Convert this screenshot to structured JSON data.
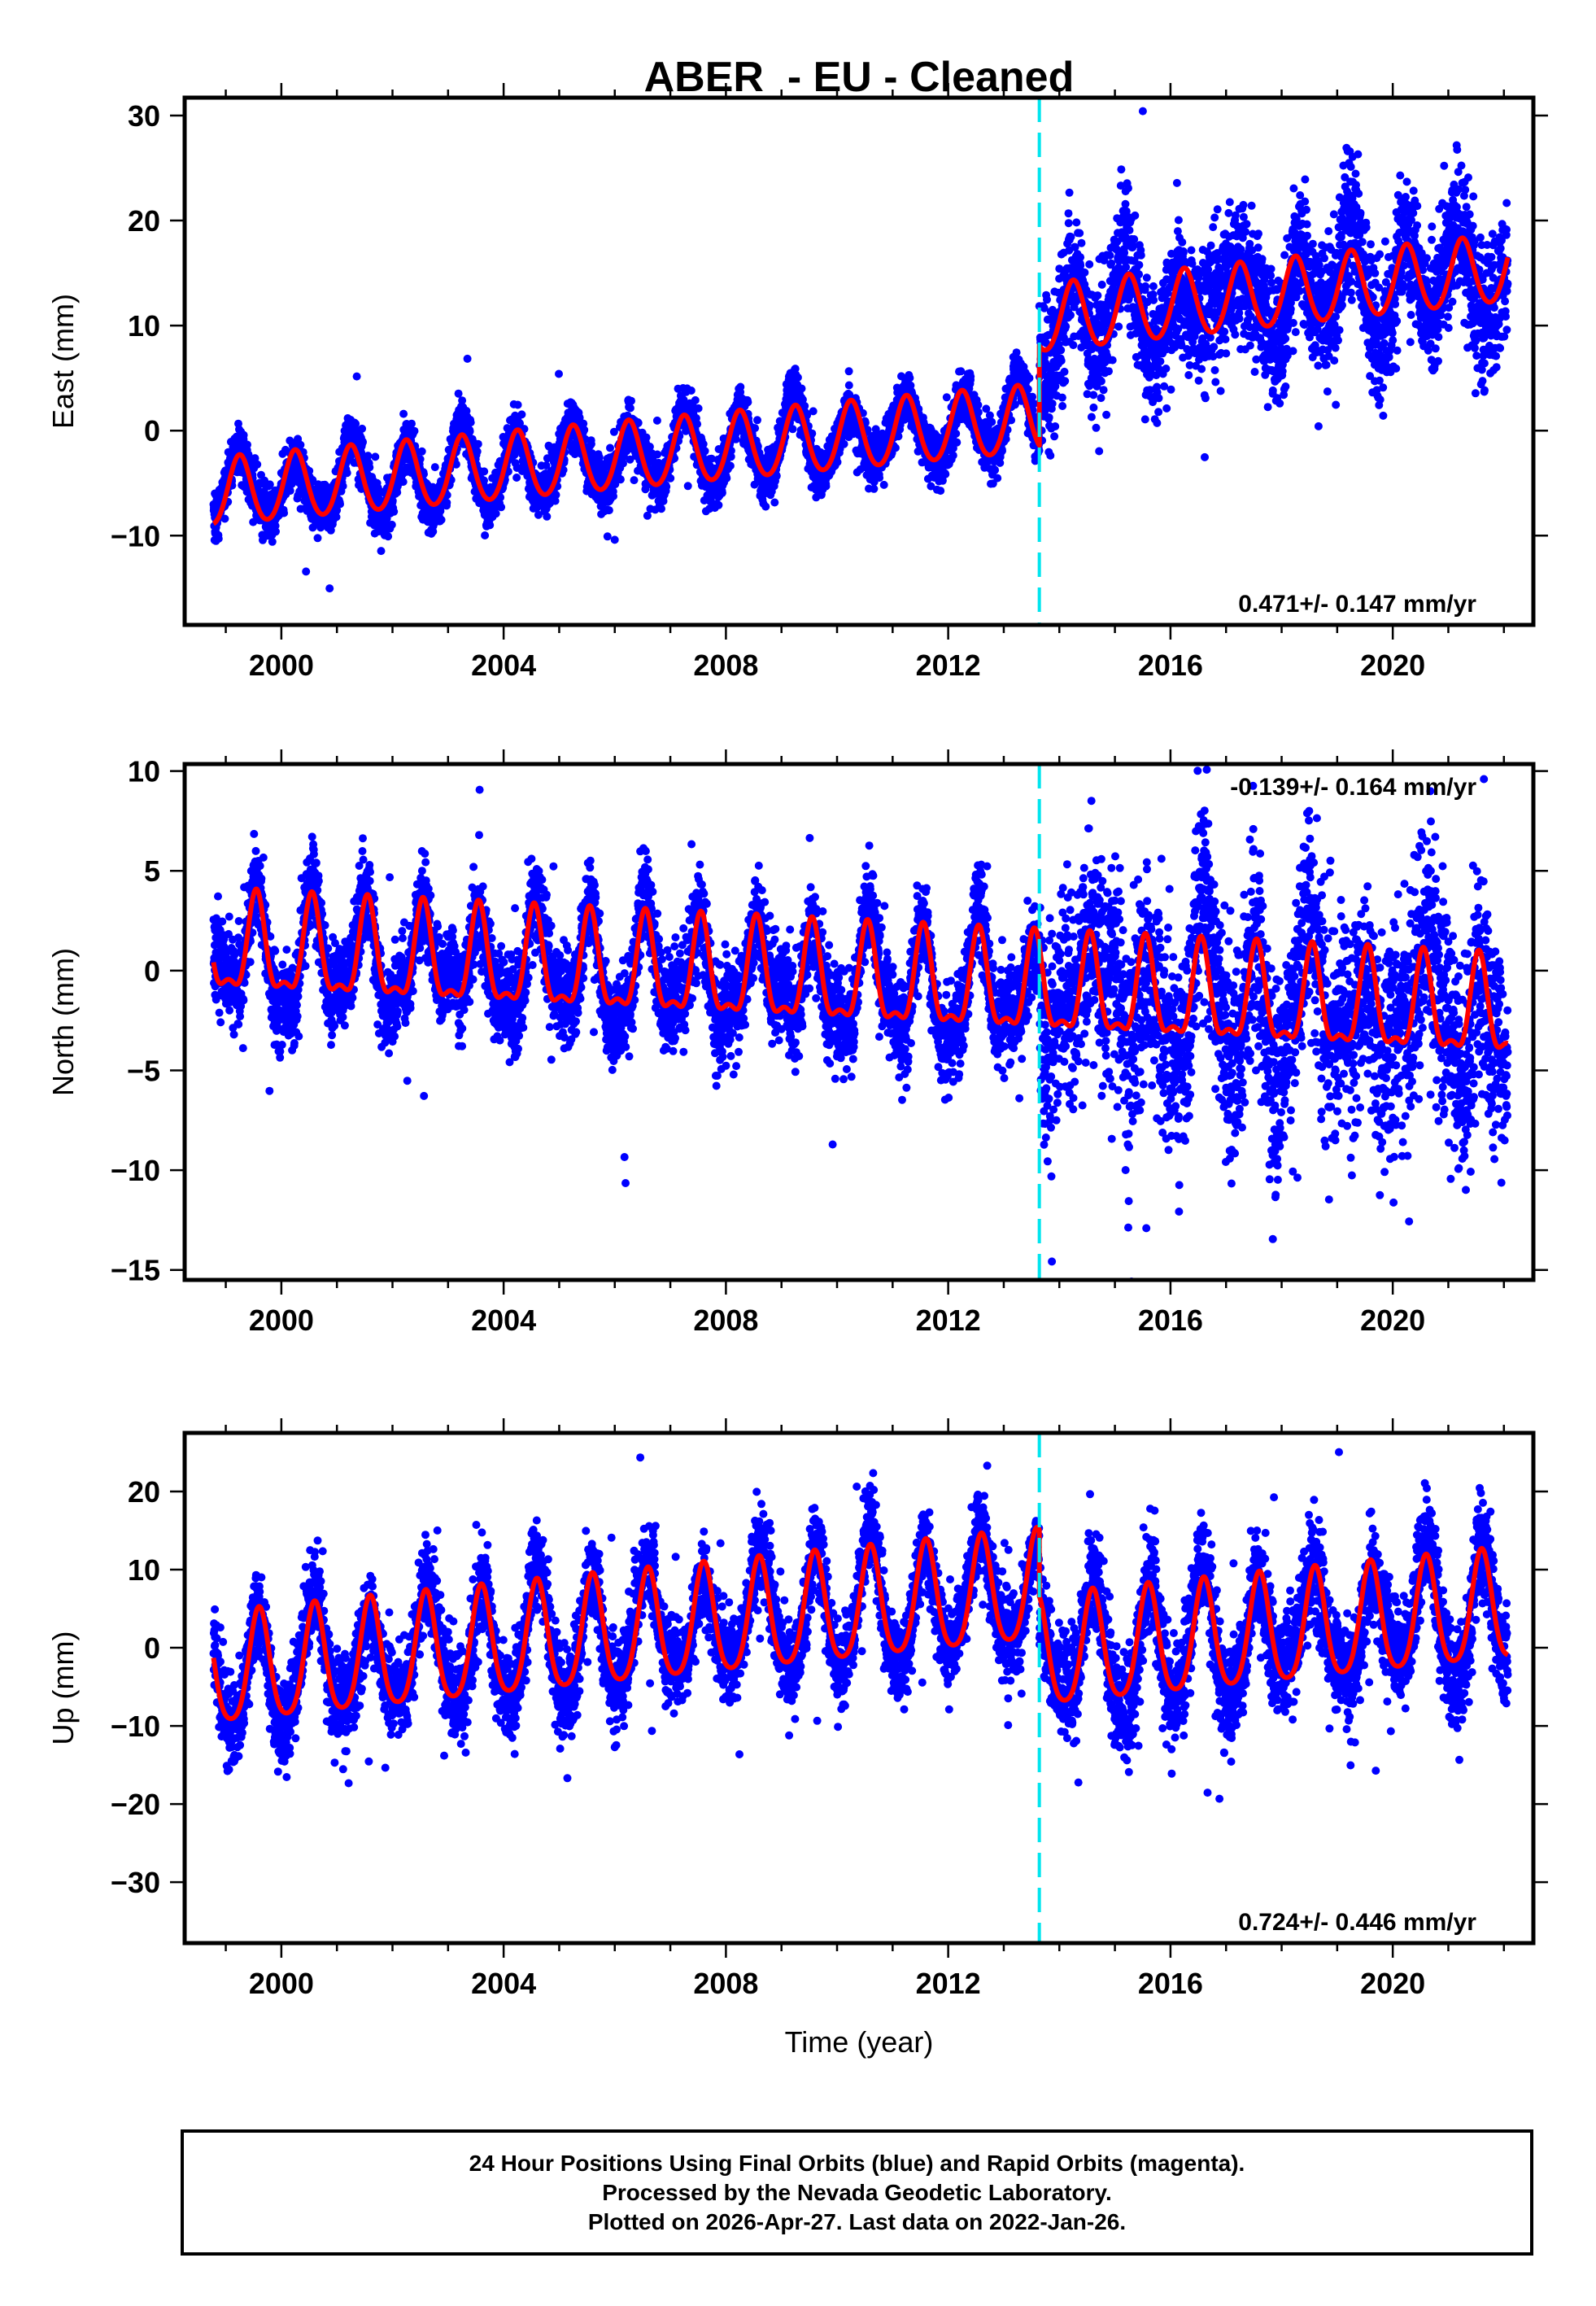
{
  "chart_data": [
    {
      "type": "scatter",
      "panel": "east",
      "title": "ABER  - EU - Cleaned",
      "ylabel": "East (mm)",
      "xlabel": "",
      "xlim": [
        1998.26,
        2022.53
      ],
      "ylim": [
        -18.5,
        31.7
      ],
      "yticks": [
        -10,
        0,
        10,
        20,
        30
      ],
      "ytick_labels": [
        "−10",
        "0",
        "10",
        "20",
        "30"
      ],
      "xticks_major": [
        2000,
        2004,
        2008,
        2012,
        2016,
        2020
      ],
      "xtick_labels": [
        "2000",
        "2004",
        "2008",
        "2012",
        "2016",
        "2020"
      ],
      "xticks_minor_step": 1,
      "rate_label": "0.471+/- 0.147 mm/yr",
      "rate_position": "bottom-right",
      "break_epoch": 2013.64,
      "data_range": [
        1998.78,
        2022.07
      ],
      "model": {
        "t0": 1998.78,
        "intercept": -6.0,
        "rate": 0.471,
        "annual_amp": 3.2,
        "annual_phase_peak": 0.25,
        "semiannual_amp": 0.3,
        "offset_at_break": 9.5,
        "post_break_extra_rate": 0.1,
        "model_end": 2022.07
      },
      "scatter": {
        "noise_pre": 1.6,
        "noise_post": 4.2,
        "outlier_rate": 0.01,
        "points_per_year": 330,
        "seed": 11
      },
      "series": [
        {
          "name": "Final Orbits",
          "color": "#0000ff",
          "kind": "points"
        },
        {
          "name": "Model fit",
          "color": "#ff0000",
          "kind": "line"
        },
        {
          "name": "Equipment change",
          "color": "#00e5ee",
          "kind": "dashed-vline"
        }
      ]
    },
    {
      "type": "scatter",
      "panel": "north",
      "ylabel": "North (mm)",
      "xlabel": "",
      "xlim": [
        1998.26,
        2022.53
      ],
      "ylim": [
        -15.5,
        10.35
      ],
      "yticks": [
        -15,
        -10,
        -5,
        0,
        5,
        10
      ],
      "ytick_labels": [
        "−15",
        "−10",
        "−5",
        "0",
        "5",
        "10"
      ],
      "xticks_major": [
        2000,
        2004,
        2008,
        2012,
        2016,
        2020
      ],
      "xtick_labels": [
        "2000",
        "2004",
        "2008",
        "2012",
        "2016",
        "2020"
      ],
      "xticks_minor_step": 1,
      "rate_label": "-0.139+/- 0.164 mm/yr",
      "rate_position": "top-right",
      "break_epoch": 2013.64,
      "data_range": [
        1998.78,
        2022.07
      ],
      "model": {
        "t0": 1998.78,
        "intercept": 1.0,
        "rate": -0.139,
        "annual_amp": 2.3,
        "annual_phase_peak": 0.55,
        "semiannual_amp": 0.9,
        "offset_at_break": 0.0,
        "post_break_extra_rate": 0.0,
        "model_end": 2022.07
      },
      "scatter": {
        "noise_pre": 1.5,
        "noise_post": 3.6,
        "outlier_rate": 0.01,
        "points_per_year": 330,
        "seed": 23
      },
      "series": [
        {
          "name": "Final Orbits",
          "color": "#0000ff",
          "kind": "points"
        },
        {
          "name": "Model fit",
          "color": "#ff0000",
          "kind": "line"
        },
        {
          "name": "Equipment change",
          "color": "#00e5ee",
          "kind": "dashed-vline"
        }
      ]
    },
    {
      "type": "scatter",
      "panel": "up",
      "ylabel": "Up (mm)",
      "xlabel": "Time (year)",
      "xlim": [
        1998.26,
        2022.53
      ],
      "ylim": [
        -37.8,
        27.5
      ],
      "yticks": [
        -30,
        -20,
        -10,
        0,
        10,
        20
      ],
      "ytick_labels": [
        "−30",
        "−20",
        "−10",
        "0",
        "10",
        "20"
      ],
      "xticks_major": [
        2000,
        2004,
        2008,
        2012,
        2016,
        2020
      ],
      "xtick_labels": [
        "2000",
        "2004",
        "2008",
        "2012",
        "2016",
        "2020"
      ],
      "xticks_minor_step": 1,
      "rate_label": "0.724+/- 0.446 mm/yr",
      "rate_position": "bottom-right",
      "break_epoch": 2013.64,
      "data_range": [
        1998.78,
        2022.07
      ],
      "model": {
        "t0": 1998.78,
        "intercept": -3.5,
        "rate": 0.724,
        "annual_amp": 7.0,
        "annual_phase_peak": 0.6,
        "semiannual_amp": 1.2,
        "offset_at_break": -8.5,
        "post_break_extra_rate": 0.0,
        "model_end": 2022.07
      },
      "scatter": {
        "noise_pre": 3.6,
        "noise_post": 4.4,
        "outlier_rate": 0.015,
        "points_per_year": 330,
        "seed": 37
      },
      "series": [
        {
          "name": "Final Orbits",
          "color": "#0000ff",
          "kind": "points"
        },
        {
          "name": "Model fit",
          "color": "#ff0000",
          "kind": "line"
        },
        {
          "name": "Equipment change",
          "color": "#00e5ee",
          "kind": "dashed-vline"
        }
      ]
    }
  ],
  "figure": {
    "title": "ABER  - EU - Cleaned",
    "xlabel": "Time (year)"
  },
  "footer": {
    "line1": "24 Hour Positions Using Final Orbits (blue) and Rapid Orbits (magenta).",
    "line2": "Processed by the Nevada Geodetic Laboratory.",
    "line3": "Plotted on 2026-Apr-27. Last data on 2022-Jan-26."
  }
}
